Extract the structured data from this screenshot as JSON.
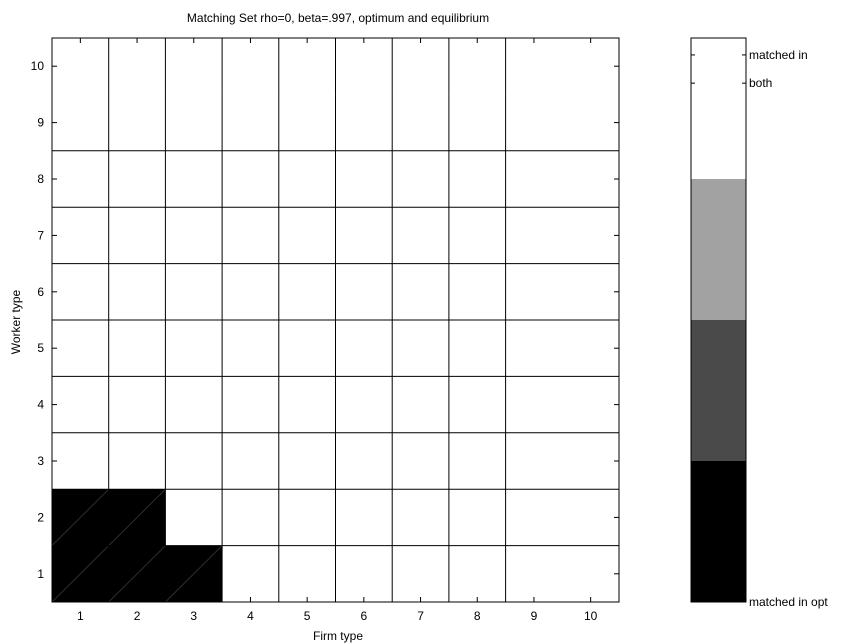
{
  "chart_data": {
    "type": "heatmap",
    "title": "Matching Set rho=0, beta=.997, optimum and equilibrium",
    "xlabel": "Firm type",
    "ylabel": "Worker type",
    "x_ticks": [
      "1",
      "2",
      "3",
      "4",
      "5",
      "6",
      "7",
      "8",
      "9",
      "10"
    ],
    "y_ticks": [
      "1",
      "2",
      "3",
      "4",
      "5",
      "6",
      "7",
      "8",
      "9",
      "10"
    ],
    "xlim": [
      0.5,
      10.5
    ],
    "ylim": [
      0.5,
      10.5
    ],
    "colormap": [
      "#000000",
      "#4a4a4a",
      "#a2a2a2",
      "#ffffff"
    ],
    "cells_value_3_unless_listed": 3,
    "cells": [
      {
        "worker": 1,
        "firm": 1,
        "value": 0
      },
      {
        "worker": 1,
        "firm": 2,
        "value": 0
      },
      {
        "worker": 1,
        "firm": 3,
        "value": 0
      },
      {
        "worker": 2,
        "firm": 1,
        "value": 0
      },
      {
        "worker": 2,
        "firm": 2,
        "value": 0
      }
    ],
    "colorbar": {
      "clim": [
        0,
        3
      ],
      "labels": [
        {
          "text": "matched in",
          "value": 2.91
        },
        {
          "text": "both",
          "value": 2.76
        },
        {
          "text": "matched in opt",
          "value": 0
        }
      ]
    }
  }
}
